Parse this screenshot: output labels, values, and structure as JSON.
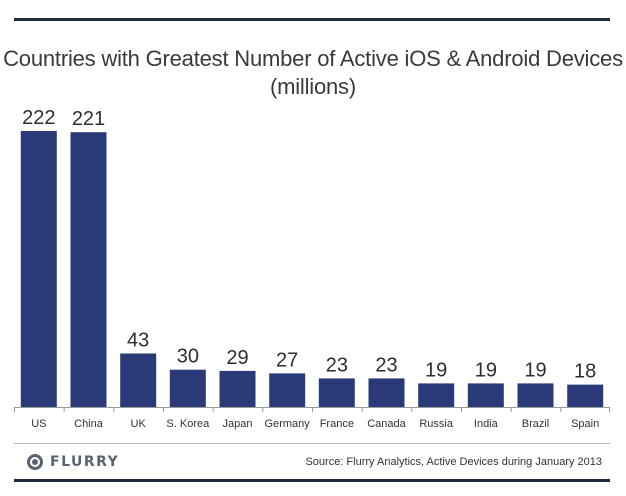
{
  "chart_data": {
    "type": "bar",
    "title": "Countries with Greatest Number of Active iOS & Android Devices",
    "subtitle": "(millions)",
    "categories": [
      "US",
      "China",
      "UK",
      "S. Korea",
      "Japan",
      "Germany",
      "France",
      "Canada",
      "Russia",
      "India",
      "Brazil",
      "Spain"
    ],
    "values": [
      222,
      221,
      43,
      30,
      29,
      27,
      23,
      23,
      19,
      19,
      19,
      18
    ],
    "data_labels": [
      "222",
      "221",
      "43",
      "30",
      "29",
      "27",
      "23",
      "23",
      "19",
      "19",
      "19",
      "18"
    ],
    "xlabel": "",
    "ylabel": "",
    "ylim": [
      0,
      222
    ],
    "grid": false,
    "legend": "none",
    "bar_color": "#2a3a78"
  },
  "footer": {
    "logo_text": "FLURRY",
    "logo_icon": "flurry-logo-icon",
    "source": "Source: Flurry Analytics, Active Devices during January 2013"
  },
  "colors": {
    "rule": "#1f2b3a",
    "bar": "#2a3a78"
  }
}
